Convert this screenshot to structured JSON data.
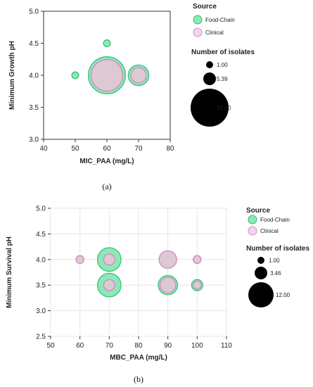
{
  "colors": {
    "food_chain_fill": "#8de8b8",
    "food_chain_stroke": "#2fbf73",
    "clinical_fill": "#dcc9d2",
    "clinical_stroke": "#cf8ec6",
    "axis": "#333333",
    "grid": "#e6e6e6"
  },
  "chart_data": [
    {
      "type": "scatter",
      "panel": "(a)",
      "xlabel": "MIC_PAA (mg/L)",
      "ylabel": "Minimum Growth pH",
      "xlim": [
        40,
        80
      ],
      "ylim": [
        3.0,
        5.0
      ],
      "xticks": [
        "40",
        "50",
        "60",
        "70",
        "80"
      ],
      "yticks": [
        "3.0",
        "3.5",
        "4.0",
        "4.5",
        "5.0"
      ],
      "grid": false,
      "legend_placement": "right",
      "legend": {
        "title": "Source",
        "entries": [
          "Food-Chain",
          "Clinical"
        ],
        "size_title": "Number of isolates",
        "size_values": [
          "1.00",
          "5.39",
          "29.00"
        ]
      },
      "series": [
        {
          "name": "Food-Chain",
          "points": [
            {
              "x": 50,
              "y": 4.0,
              "n": 1
            },
            {
              "x": 60,
              "y": 4.5,
              "n": 1
            },
            {
              "x": 60,
              "y": 4.0,
              "n": 29
            },
            {
              "x": 70,
              "y": 4.0,
              "n": 9
            }
          ]
        },
        {
          "name": "Clinical",
          "points": [
            {
              "x": 60,
              "y": 4.0,
              "n": 21
            },
            {
              "x": 70,
              "y": 4.0,
              "n": 5
            }
          ]
        }
      ]
    },
    {
      "type": "scatter",
      "panel": "(b)",
      "xlabel": "MBC_PAA (mg/L)",
      "ylabel": "Minimum Survival pH",
      "xlim": [
        50,
        110
      ],
      "ylim": [
        2.5,
        5.0
      ],
      "xticks": [
        "50",
        "60",
        "70",
        "80",
        "90",
        "100",
        "110"
      ],
      "yticks": [
        "2.5",
        "3.0",
        "3.5",
        "4.0",
        "4.5",
        "5.0"
      ],
      "grid": true,
      "legend_placement": "right",
      "legend": {
        "title": "Source",
        "entries": [
          "Food-Chain",
          "Clinical"
        ],
        "size_title": "Number of isolates",
        "size_values": [
          "1.00",
          "3.46",
          "12.00"
        ]
      },
      "series": [
        {
          "name": "Food-Chain",
          "points": [
            {
              "x": 70,
              "y": 4.0,
              "n": 9
            },
            {
              "x": 70,
              "y": 3.5,
              "n": 9
            },
            {
              "x": 90,
              "y": 3.5,
              "n": 6
            },
            {
              "x": 100,
              "y": 4.0,
              "n": 1
            },
            {
              "x": 100,
              "y": 3.5,
              "n": 2
            }
          ]
        },
        {
          "name": "Clinical",
          "points": [
            {
              "x": 60,
              "y": 4.0,
              "n": 1
            },
            {
              "x": 70,
              "y": 4.0,
              "n": 2
            },
            {
              "x": 70,
              "y": 3.5,
              "n": 2
            },
            {
              "x": 90,
              "y": 4.0,
              "n": 5
            },
            {
              "x": 90,
              "y": 3.5,
              "n": 4
            },
            {
              "x": 100,
              "y": 4.0,
              "n": 1
            },
            {
              "x": 100,
              "y": 3.5,
              "n": 1
            }
          ]
        }
      ]
    }
  ]
}
